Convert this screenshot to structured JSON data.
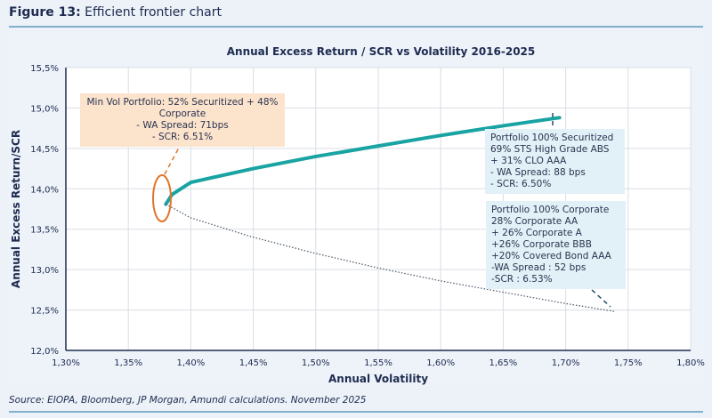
{
  "figure": {
    "label": "Figure 13:",
    "title": "Efficient frontier chart"
  },
  "source": "Source: EIOPA, Bloomberg, JP Morgan, Amundi calculations. November 2025",
  "chart_data": {
    "type": "line",
    "title": "Annual Excess Return / SCR vs Volatility 2016-2025",
    "xlabel": "Annual Volatility",
    "ylabel": "Annual Excess Return/SCR",
    "xlim": [
      1.3,
      1.8
    ],
    "ylim": [
      12.0,
      15.5
    ],
    "x_ticks": [
      "1,30%",
      "1,35%",
      "1,40%",
      "1,45%",
      "1,50%",
      "1,55%",
      "1,60%",
      "1,65%",
      "1,70%",
      "1,75%",
      "1,80%"
    ],
    "y_ticks": [
      "12,0%",
      "12,5%",
      "13,0%",
      "13,5%",
      "14,0%",
      "14,5%",
      "15,0%",
      "15,5%"
    ],
    "grid": true,
    "series": [
      {
        "style": "solid",
        "color": "#1aa3a3",
        "x": [
          1.38,
          1.385,
          1.4,
          1.45,
          1.5,
          1.55,
          1.6,
          1.65,
          1.695
        ],
        "y": [
          13.81,
          13.93,
          14.08,
          14.25,
          14.4,
          14.53,
          14.66,
          14.78,
          14.88
        ]
      },
      {
        "style": "dotted",
        "color": "#556070",
        "x": [
          1.38,
          1.4,
          1.45,
          1.5,
          1.55,
          1.6,
          1.65,
          1.7,
          1.74
        ],
        "y": [
          13.81,
          13.64,
          13.4,
          13.2,
          13.02,
          12.86,
          12.72,
          12.58,
          12.48
        ]
      }
    ],
    "annotations": [
      {
        "lines": [
          "Min Vol Portfolio: 52% Securitized + 48%",
          "Corporate",
          "- WA Spread: 71bps",
          "- SCR: 6.51%"
        ],
        "bg": "#fbe3cc",
        "accent": "#e0752b"
      },
      {
        "lines": [
          "Portfolio 100% Securitized",
          "69% STS High Grade ABS",
          "+ 31% CLO AAA",
          "- WA Spread: 88 bps",
          "- SCR: 6.50%"
        ],
        "bg": "#e2f1f7"
      },
      {
        "lines": [
          "Portfolio 100% Corporate",
          "28% Corporate AA",
          "+ 26% Corporate A",
          "+26% Corporate BBB",
          "+20% Covered Bond AAA",
          "-WA Spread : 52 bps",
          "-SCR : 6.53%"
        ],
        "bg": "#e2f1f7"
      }
    ]
  }
}
